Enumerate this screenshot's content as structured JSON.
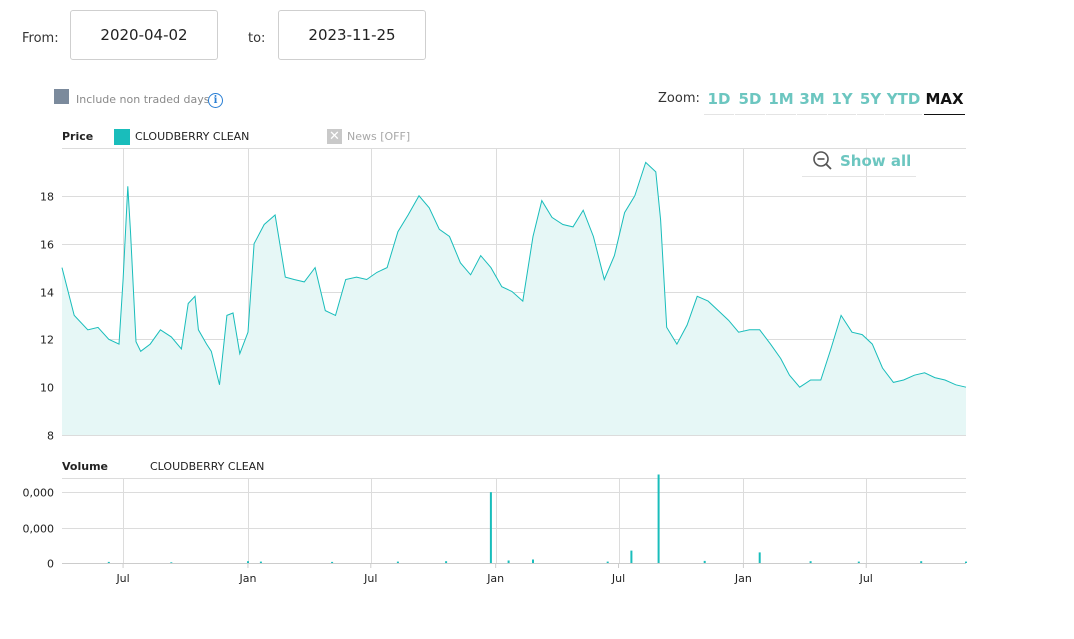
{
  "range": {
    "from_label": "From:",
    "from_value": "2020-04-02",
    "to_label": "to:",
    "to_value": "2023-11-25"
  },
  "options": {
    "non_traded_label": "Include non traded days",
    "info_glyph": "i"
  },
  "zoom": {
    "label": "Zoom:",
    "buttons": [
      "1D",
      "5D",
      "1M",
      "3M",
      "1Y",
      "5Y",
      "YTD",
      "MAX"
    ],
    "active": "MAX",
    "accent_color": "#6cc6c0"
  },
  "price_panel": {
    "title": "Price",
    "series_name": "CLOUDBERRY CLEAN",
    "series_color": "#19bdbb",
    "news_label": "News [OFF]",
    "show_all_label": "Show all"
  },
  "volume_panel": {
    "title": "Volume",
    "series_name": "CLOUDBERRY CLEAN"
  },
  "x_axis_ticks": [
    "Jul",
    "Jan",
    "Jul",
    "Jan",
    "Jul",
    "Jan",
    "Jul"
  ],
  "chart_data": [
    {
      "type": "area",
      "title": "Price",
      "ylim": [
        8,
        20
      ],
      "yticks": [
        "8",
        "10",
        "12",
        "14",
        "16",
        "18"
      ],
      "grid": true,
      "series": [
        {
          "name": "CLOUDBERRY CLEAN",
          "x": [
            "2020-04-02",
            "2020-04-20",
            "2020-05-10",
            "2020-05-25",
            "2020-06-10",
            "2020-06-25",
            "2020-07-01",
            "2020-07-08",
            "2020-07-12",
            "2020-07-20",
            "2020-07-27",
            "2020-08-10",
            "2020-08-25",
            "2020-09-10",
            "2020-09-25",
            "2020-10-05",
            "2020-10-15",
            "2020-10-20",
            "2020-11-01",
            "2020-11-08",
            "2020-11-20",
            "2020-12-01",
            "2020-12-10",
            "2020-12-20",
            "2021-01-01",
            "2021-01-10",
            "2021-01-25",
            "2021-02-10",
            "2021-02-25",
            "2021-03-10",
            "2021-03-25",
            "2021-04-10",
            "2021-04-25",
            "2021-05-10",
            "2021-05-25",
            "2021-06-10",
            "2021-06-25",
            "2021-07-10",
            "2021-07-25",
            "2021-08-10",
            "2021-08-25",
            "2021-09-10",
            "2021-09-25",
            "2021-10-10",
            "2021-10-25",
            "2021-11-10",
            "2021-11-25",
            "2021-12-10",
            "2021-12-25",
            "2022-01-10",
            "2022-01-25",
            "2022-02-10",
            "2022-02-25",
            "2022-03-10",
            "2022-03-25",
            "2022-04-10",
            "2022-04-25",
            "2022-05-10",
            "2022-05-25",
            "2022-06-10",
            "2022-06-25",
            "2022-07-10",
            "2022-07-25",
            "2022-08-10",
            "2022-08-25",
            "2022-09-01",
            "2022-09-10",
            "2022-09-25",
            "2022-10-10",
            "2022-10-25",
            "2022-11-10",
            "2022-11-25",
            "2022-12-10",
            "2022-12-25",
            "2023-01-10",
            "2023-01-25",
            "2023-02-10",
            "2023-02-25",
            "2023-03-10",
            "2023-03-25",
            "2023-04-10",
            "2023-04-25",
            "2023-05-10",
            "2023-05-25",
            "2023-06-10",
            "2023-06-25",
            "2023-07-10",
            "2023-07-25",
            "2023-08-10",
            "2023-08-25",
            "2023-09-10",
            "2023-09-25",
            "2023-10-10",
            "2023-10-25",
            "2023-11-10",
            "2023-11-25"
          ],
          "values": [
            15.0,
            13.0,
            12.4,
            12.5,
            12.0,
            11.8,
            14.5,
            18.4,
            16.5,
            11.9,
            11.5,
            11.8,
            12.4,
            12.1,
            11.6,
            13.5,
            13.8,
            12.4,
            11.8,
            11.5,
            10.1,
            13.0,
            13.1,
            11.4,
            12.3,
            16.0,
            16.8,
            17.2,
            14.6,
            14.5,
            14.4,
            15.0,
            13.2,
            13.0,
            14.5,
            14.6,
            14.5,
            14.8,
            15.0,
            16.5,
            17.2,
            18.0,
            17.5,
            16.6,
            16.3,
            15.2,
            14.7,
            15.5,
            15.0,
            14.2,
            14.0,
            13.6,
            16.3,
            17.8,
            17.1,
            16.8,
            16.7,
            17.4,
            16.3,
            14.5,
            15.5,
            17.3,
            18.0,
            19.4,
            19.0,
            17.0,
            12.5,
            11.8,
            12.6,
            13.8,
            13.6,
            13.2,
            12.8,
            12.3,
            12.4,
            12.4,
            11.8,
            11.2,
            10.5,
            10.0,
            10.3,
            10.3,
            11.6,
            13.0,
            12.3,
            12.2,
            11.8,
            10.8,
            10.2,
            10.3,
            10.5,
            10.6,
            10.4,
            10.3,
            10.1,
            10.0
          ]
        }
      ]
    },
    {
      "type": "bar",
      "title": "Volume",
      "ylim": [
        0,
        2.4
      ],
      "yticks": [
        "0",
        "0,000",
        "0,000"
      ],
      "grid": true,
      "series": [
        {
          "name": "CLOUDBERRY CLEAN",
          "x": [
            "2020-06-10",
            "2020-09-10",
            "2021-01-01",
            "2021-01-20",
            "2021-05-05",
            "2021-08-10",
            "2021-10-20",
            "2021-12-25",
            "2022-01-20",
            "2022-02-25",
            "2022-06-15",
            "2022-07-20",
            "2022-08-29",
            "2022-11-05",
            "2023-01-25",
            "2023-04-10",
            "2023-06-20",
            "2023-09-20",
            "2023-11-25"
          ],
          "values": [
            0.03,
            0.02,
            0.05,
            0.04,
            0.03,
            0.04,
            0.05,
            2.0,
            0.07,
            0.1,
            0.04,
            0.35,
            2.5,
            0.06,
            0.3,
            0.05,
            0.04,
            0.05,
            0.04
          ]
        }
      ]
    }
  ]
}
